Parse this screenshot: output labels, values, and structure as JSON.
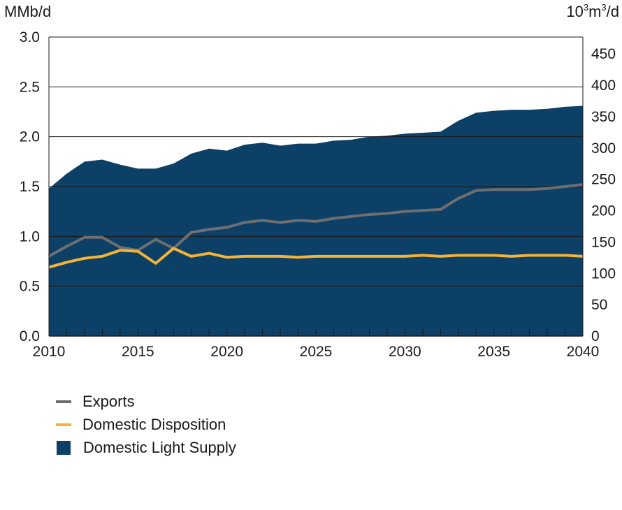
{
  "chart_data": {
    "type": "area",
    "left_unit": "MMb/d",
    "right_unit_base": "10",
    "right_unit_sup1": "3",
    "right_unit_mid": "m",
    "right_unit_sup2": "3",
    "right_unit_end": "/d",
    "ylim": [
      0,
      3.0
    ],
    "yticks": [
      "0.0",
      "0.5",
      "1.0",
      "1.5",
      "2.0",
      "2.5",
      "3.0"
    ],
    "ylim_right": [
      0,
      477
    ],
    "yticks_right": [
      "0",
      "50",
      "100",
      "150",
      "200",
      "250",
      "300",
      "350",
      "400",
      "450"
    ],
    "xlim": [
      2010,
      2040
    ],
    "xticks": [
      "2010",
      "2015",
      "2020",
      "2025",
      "2030",
      "2035",
      "2040"
    ],
    "grid": true,
    "x": [
      2010,
      2011,
      2012,
      2013,
      2014,
      2015,
      2016,
      2017,
      2018,
      2019,
      2020,
      2021,
      2022,
      2023,
      2024,
      2025,
      2026,
      2027,
      2028,
      2029,
      2030,
      2031,
      2032,
      2033,
      2034,
      2035,
      2036,
      2037,
      2038,
      2039,
      2040
    ],
    "series": [
      {
        "name": "Domestic Light Supply",
        "kind": "area",
        "color": "#0c4066",
        "values": [
          1.48,
          1.63,
          1.75,
          1.77,
          1.72,
          1.68,
          1.68,
          1.73,
          1.83,
          1.88,
          1.86,
          1.92,
          1.94,
          1.91,
          1.93,
          1.93,
          1.96,
          1.97,
          2.0,
          2.01,
          2.03,
          2.04,
          2.05,
          2.16,
          2.24,
          2.26,
          2.27,
          2.27,
          2.28,
          2.3,
          2.31
        ]
      },
      {
        "name": "Exports",
        "kind": "line",
        "color": "#6d6e71",
        "values": [
          0.8,
          0.9,
          0.99,
          0.99,
          0.89,
          0.86,
          0.97,
          0.88,
          1.04,
          1.07,
          1.09,
          1.14,
          1.16,
          1.14,
          1.16,
          1.15,
          1.18,
          1.2,
          1.22,
          1.23,
          1.25,
          1.26,
          1.27,
          1.38,
          1.46,
          1.47,
          1.47,
          1.47,
          1.48,
          1.5,
          1.52
        ]
      },
      {
        "name": "Domestic Disposition",
        "kind": "line",
        "color": "#f5b335",
        "values": [
          0.69,
          0.74,
          0.78,
          0.8,
          0.86,
          0.85,
          0.73,
          0.88,
          0.8,
          0.83,
          0.79,
          0.8,
          0.8,
          0.8,
          0.79,
          0.8,
          0.8,
          0.8,
          0.8,
          0.8,
          0.8,
          0.81,
          0.8,
          0.81,
          0.81,
          0.81,
          0.8,
          0.81,
          0.81,
          0.81,
          0.8
        ]
      }
    ],
    "legend_order": [
      "Exports",
      "Domestic Disposition",
      "Domestic Light Supply"
    ],
    "legend_position": "bottom-left"
  }
}
